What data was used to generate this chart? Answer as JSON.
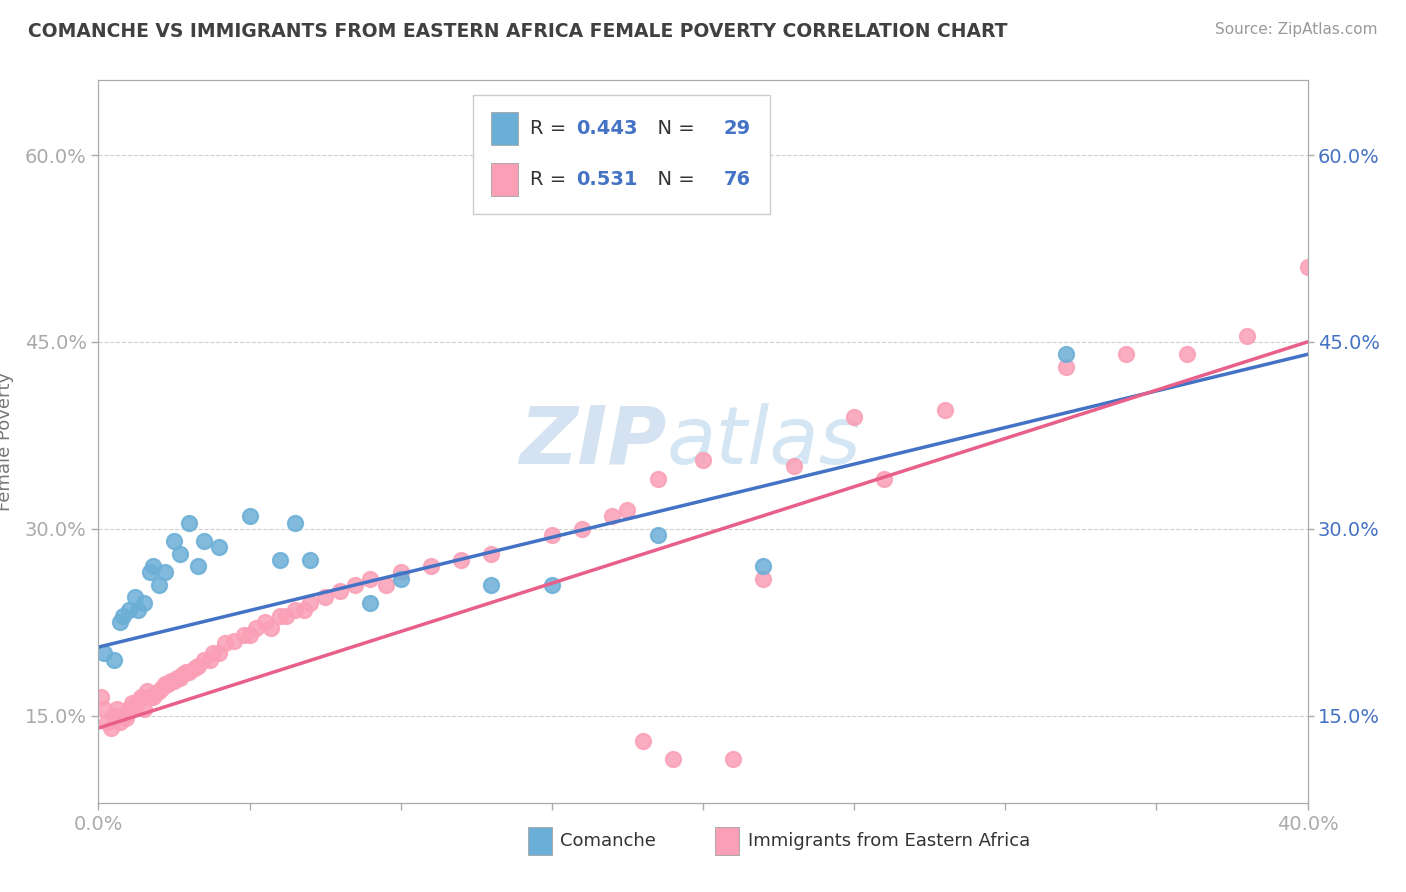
{
  "title": "COMANCHE VS IMMIGRANTS FROM EASTERN AFRICA FEMALE POVERTY CORRELATION CHART",
  "source": "Source: ZipAtlas.com",
  "ylabel": "Female Poverty",
  "xlim": [
    0.0,
    0.4
  ],
  "ylim": [
    0.08,
    0.66
  ],
  "yticks": [
    0.15,
    0.3,
    0.45,
    0.6
  ],
  "ytick_labels": [
    "15.0%",
    "30.0%",
    "45.0%",
    "60.0%"
  ],
  "xticks": [
    0.0,
    0.05,
    0.1,
    0.15,
    0.2,
    0.25,
    0.3,
    0.35,
    0.4
  ],
  "xtick_labels": [
    "0.0%",
    "",
    "",
    "",
    "",
    "",
    "",
    "",
    "40.0%"
  ],
  "comanche_color": "#6BAED6",
  "immigrants_color": "#FA9FB5",
  "comanche_line_color": "#4472C4",
  "immigrants_line_color": "#E8608A",
  "comanche_R": 0.443,
  "comanche_N": 29,
  "immigrants_R": 0.531,
  "immigrants_N": 76,
  "background_color": "#ffffff",
  "grid_color": "#d0d0d0",
  "tick_color": "#aaaaaa",
  "label_color": "#4472C4",
  "title_color": "#404040",
  "watermark_color": "#b8cfe8",
  "comanche_x": [
    0.002,
    0.005,
    0.007,
    0.008,
    0.01,
    0.012,
    0.013,
    0.015,
    0.017,
    0.018,
    0.02,
    0.022,
    0.025,
    0.027,
    0.03,
    0.033,
    0.035,
    0.04,
    0.05,
    0.06,
    0.065,
    0.07,
    0.09,
    0.1,
    0.13,
    0.15,
    0.185,
    0.22,
    0.32
  ],
  "comanche_y": [
    0.2,
    0.195,
    0.225,
    0.23,
    0.235,
    0.245,
    0.235,
    0.24,
    0.265,
    0.27,
    0.255,
    0.265,
    0.29,
    0.28,
    0.305,
    0.27,
    0.29,
    0.285,
    0.31,
    0.275,
    0.305,
    0.275,
    0.24,
    0.26,
    0.255,
    0.255,
    0.295,
    0.27,
    0.44
  ],
  "immigrants_x": [
    0.001,
    0.002,
    0.003,
    0.004,
    0.005,
    0.006,
    0.007,
    0.008,
    0.009,
    0.01,
    0.011,
    0.012,
    0.013,
    0.014,
    0.015,
    0.016,
    0.017,
    0.018,
    0.019,
    0.02,
    0.021,
    0.022,
    0.023,
    0.024,
    0.025,
    0.026,
    0.027,
    0.028,
    0.029,
    0.03,
    0.032,
    0.033,
    0.035,
    0.037,
    0.038,
    0.04,
    0.042,
    0.045,
    0.048,
    0.05,
    0.052,
    0.055,
    0.057,
    0.06,
    0.062,
    0.065,
    0.068,
    0.07,
    0.075,
    0.08,
    0.085,
    0.09,
    0.095,
    0.1,
    0.11,
    0.12,
    0.13,
    0.15,
    0.16,
    0.17,
    0.175,
    0.18,
    0.185,
    0.19,
    0.2,
    0.21,
    0.22,
    0.23,
    0.25,
    0.26,
    0.28,
    0.32,
    0.34,
    0.36,
    0.38,
    0.4
  ],
  "immigrants_y": [
    0.165,
    0.155,
    0.145,
    0.14,
    0.15,
    0.155,
    0.145,
    0.15,
    0.148,
    0.155,
    0.16,
    0.158,
    0.162,
    0.165,
    0.155,
    0.17,
    0.165,
    0.165,
    0.168,
    0.17,
    0.172,
    0.175,
    0.175,
    0.178,
    0.178,
    0.18,
    0.18,
    0.183,
    0.185,
    0.185,
    0.188,
    0.19,
    0.195,
    0.195,
    0.2,
    0.2,
    0.208,
    0.21,
    0.215,
    0.215,
    0.22,
    0.225,
    0.22,
    0.23,
    0.23,
    0.235,
    0.235,
    0.24,
    0.245,
    0.25,
    0.255,
    0.26,
    0.255,
    0.265,
    0.27,
    0.275,
    0.28,
    0.295,
    0.3,
    0.31,
    0.315,
    0.13,
    0.34,
    0.115,
    0.355,
    0.115,
    0.26,
    0.35,
    0.39,
    0.34,
    0.395,
    0.43,
    0.44,
    0.44,
    0.455,
    0.51
  ],
  "comanche_trend": [
    0.205,
    0.44
  ],
  "immigrants_trend_x": [
    0.0,
    0.4
  ],
  "immigrants_trend_y": [
    0.14,
    0.45
  ],
  "comanche_trend_x": [
    0.0,
    0.4
  ],
  "comanche_trend_y": [
    0.205,
    0.44
  ]
}
